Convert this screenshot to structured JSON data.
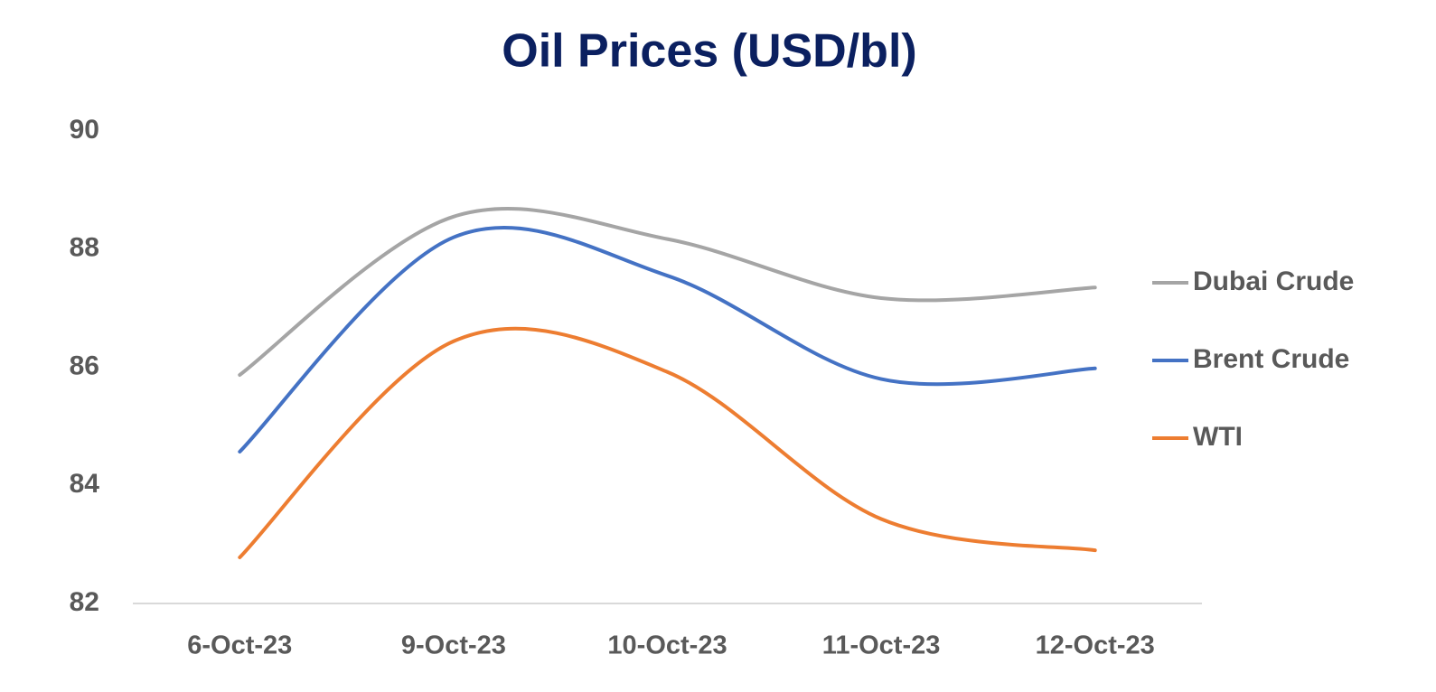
{
  "chart_data": {
    "type": "line",
    "title": "Oil Prices (USD/bl)",
    "categories": [
      "6-Oct-23",
      "9-Oct-23",
      "10-Oct-23",
      "11-Oct-23",
      "12-Oct-23"
    ],
    "series": [
      {
        "name": "Dubai Crude",
        "color": "#a5a5a5",
        "values": [
          85.87,
          88.55,
          88.17,
          87.17,
          87.35
        ]
      },
      {
        "name": "Brent Crude",
        "color": "#4472c4",
        "values": [
          84.57,
          88.2,
          87.55,
          85.8,
          85.98
        ]
      },
      {
        "name": "WTI",
        "color": "#ed7d31",
        "values": [
          82.78,
          86.44,
          85.92,
          83.43,
          82.9
        ]
      }
    ],
    "ylim": [
      82,
      90
    ],
    "yticks": [
      82,
      84,
      86,
      88,
      90
    ],
    "grid": false,
    "smooth": true,
    "legend": "right"
  }
}
